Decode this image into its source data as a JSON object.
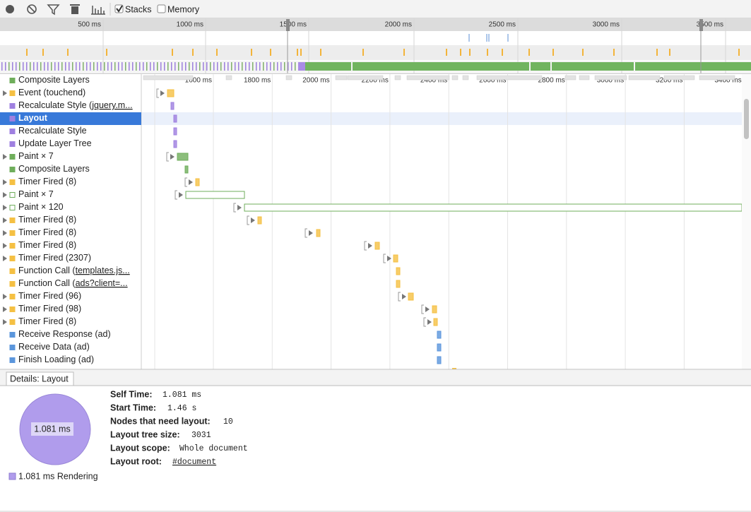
{
  "toolbar": {
    "stacks": {
      "label": "Stacks",
      "checked": true
    },
    "memory": {
      "label": "Memory",
      "checked": false
    }
  },
  "overview": {
    "ruler_labels": [
      "500 ms",
      "1000 ms",
      "1500 ms",
      "2000 ms",
      "2500 ms",
      "3000 ms",
      "3500 ms"
    ]
  },
  "timeline": {
    "ruler_labels": [
      "1600 ms",
      "1800 ms",
      "2000 ms",
      "2200 ms",
      "2400 ms",
      "2600 ms",
      "2800 ms",
      "3000 ms",
      "3200 ms",
      "3400 ms"
    ],
    "selected_row": 3,
    "rows": [
      {
        "label": "Composite Layers"
      },
      {
        "label": "Event (touchend)"
      },
      {
        "label": "Recalculate Style (",
        "link": "jquery.m..."
      },
      {
        "label": "Layout"
      },
      {
        "label": "Recalculate Style"
      },
      {
        "label": "Update Layer Tree"
      },
      {
        "label": "Paint × 7"
      },
      {
        "label": "Composite Layers"
      },
      {
        "label": "Timer Fired (8)"
      },
      {
        "label": "Paint × 7"
      },
      {
        "label": "Paint × 120"
      },
      {
        "label": "Timer Fired (8)"
      },
      {
        "label": "Timer Fired (8)"
      },
      {
        "label": "Timer Fired (8)"
      },
      {
        "label": "Timer Fired (2307)"
      },
      {
        "label": "Function Call (",
        "link": "templates.js..."
      },
      {
        "label": "Function Call (",
        "link": "ads?client=..."
      },
      {
        "label": "Timer Fired (96)"
      },
      {
        "label": "Timer Fired (98)"
      },
      {
        "label": "Timer Fired (8)"
      },
      {
        "label": "Receive Response (ad)"
      },
      {
        "label": "Receive Data (ad)"
      },
      {
        "label": "Finish Loading (ad)"
      }
    ]
  },
  "details": {
    "tab": "Details: Layout",
    "pie_label": "1.081 ms",
    "fields": [
      {
        "label": "Self Time:",
        "value": "1.081 ms"
      },
      {
        "label": "Start Time:",
        "value": "1.46 s"
      },
      {
        "label": "Nodes that need layout:",
        "value": "10"
      },
      {
        "label": "Layout tree size:",
        "value": "3031"
      },
      {
        "label": "Layout scope:",
        "value": "Whole document"
      },
      {
        "label": "Layout root:",
        "value": "#document"
      }
    ],
    "legend": "1.081 ms Rendering"
  }
}
